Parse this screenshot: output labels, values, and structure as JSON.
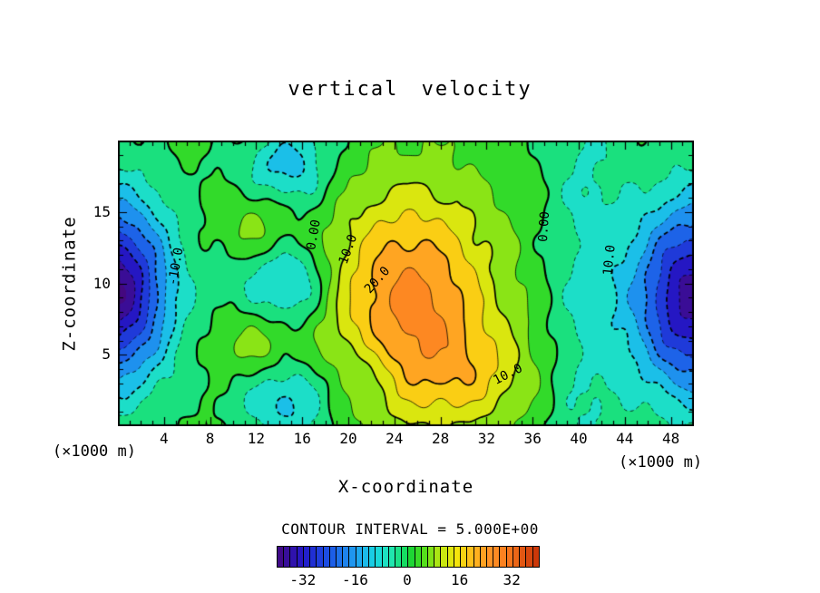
{
  "chart_data": {
    "type": "heatmap",
    "subtype": "filled_contour",
    "title": "vertical velocity",
    "xlabel": "X-coordinate",
    "ylabel": "Z-coordinate",
    "x_unit_note_left": "(×1000 m)",
    "x_unit_note_right": "(×1000 m)",
    "contour_interval_text": "CONTOUR INTERVAL = 5.000E+00",
    "contour_interval": 5,
    "xlim": [
      0,
      50
    ],
    "zlim": [
      0,
      20
    ],
    "x_ticks": [
      4,
      8,
      12,
      16,
      20,
      24,
      28,
      32,
      36,
      40,
      44,
      48
    ],
    "x_minor_step": 1,
    "z_ticks": [
      5,
      10,
      15
    ],
    "z_minor_step": 1,
    "contour_levels": {
      "min": -35,
      "max": 35,
      "step": 5
    },
    "contour_line_style": {
      "negative": "dashed",
      "zero_and_positive": "solid",
      "emphasized_every": 10
    },
    "contour_labels": [
      {
        "text": "-10.0",
        "x_pct": 10.0,
        "y_pct": 44,
        "rot": -80
      },
      {
        "text": "0.00",
        "x_pct": 34.0,
        "y_pct": 33,
        "rot": -80
      },
      {
        "text": "10.0",
        "x_pct": 40.0,
        "y_pct": 38,
        "rot": -70
      },
      {
        "text": "20.0",
        "x_pct": 45.0,
        "y_pct": 49,
        "rot": -48
      },
      {
        "text": "10.0",
        "x_pct": 67.7,
        "y_pct": 82,
        "rot": -27
      },
      {
        "text": "0.00",
        "x_pct": 74.0,
        "y_pct": 30,
        "rot": -86
      },
      {
        "text": "10.0",
        "x_pct": 85.4,
        "y_pct": 42,
        "rot": -84
      }
    ],
    "colorbar": {
      "min": -40,
      "max": 40,
      "segment_step": 2,
      "tick_values": [
        "-32",
        "-16",
        "0",
        "16",
        "32"
      ]
    },
    "colormap_stops": [
      {
        "v": -40,
        "c": "#44087f"
      },
      {
        "v": -32,
        "c": "#2318c8"
      },
      {
        "v": -24,
        "c": "#1c55e6"
      },
      {
        "v": -16,
        "c": "#1f9ff0"
      },
      {
        "v": -10,
        "c": "#18d6e2"
      },
      {
        "v": -5,
        "c": "#20e6ae"
      },
      {
        "v": -1,
        "c": "#16dc62"
      },
      {
        "v": 0,
        "c": "#10d43a"
      },
      {
        "v": 5,
        "c": "#55df1b"
      },
      {
        "v": 10,
        "c": "#c0e812"
      },
      {
        "v": 15,
        "c": "#f4e40c"
      },
      {
        "v": 20,
        "c": "#ffb71d"
      },
      {
        "v": 25,
        "c": "#ff9326"
      },
      {
        "v": 30,
        "c": "#fb7d1e"
      },
      {
        "v": 40,
        "c": "#c63007"
      }
    ],
    "field_model": {
      "base": 1.5,
      "gaussians": [
        {
          "a": 25,
          "x": 25.5,
          "z": 8.8,
          "sx": 5.0,
          "sz": 5.4
        },
        {
          "a": 9,
          "x": 31.0,
          "z": 3.5,
          "sx": 4.0,
          "sz": 2.5
        },
        {
          "a": -42,
          "x": -0.5,
          "z": 9.5,
          "sx": 3.5,
          "sz": 4.5
        },
        {
          "a": -39,
          "x": 50.0,
          "z": 9.0,
          "sx": 3.8,
          "sz": 4.8
        },
        {
          "a": -8,
          "x": 15.5,
          "z": 10.0,
          "sx": 2.2,
          "sz": 40
        },
        {
          "a": -7,
          "x": 40.5,
          "z": 11.0,
          "sx": 2.5,
          "sz": 40
        },
        {
          "a": -6,
          "x": 21.5,
          "z": 3.8,
          "sx": 1.6,
          "sz": 1.6
        }
      ],
      "waves": [
        {
          "a": 1.3,
          "kx": 1.15,
          "px": 0.7,
          "kz": 0.9,
          "pz": 1.1
        },
        {
          "a": 0.9,
          "kx": 2.3,
          "px": 0.0,
          "kz": 1.7,
          "pz": 0.5
        }
      ],
      "column_osc": {
        "a": -7,
        "x": 13.5,
        "sx": 3.0,
        "kz": 0.75,
        "pz": 0.4
      }
    }
  }
}
